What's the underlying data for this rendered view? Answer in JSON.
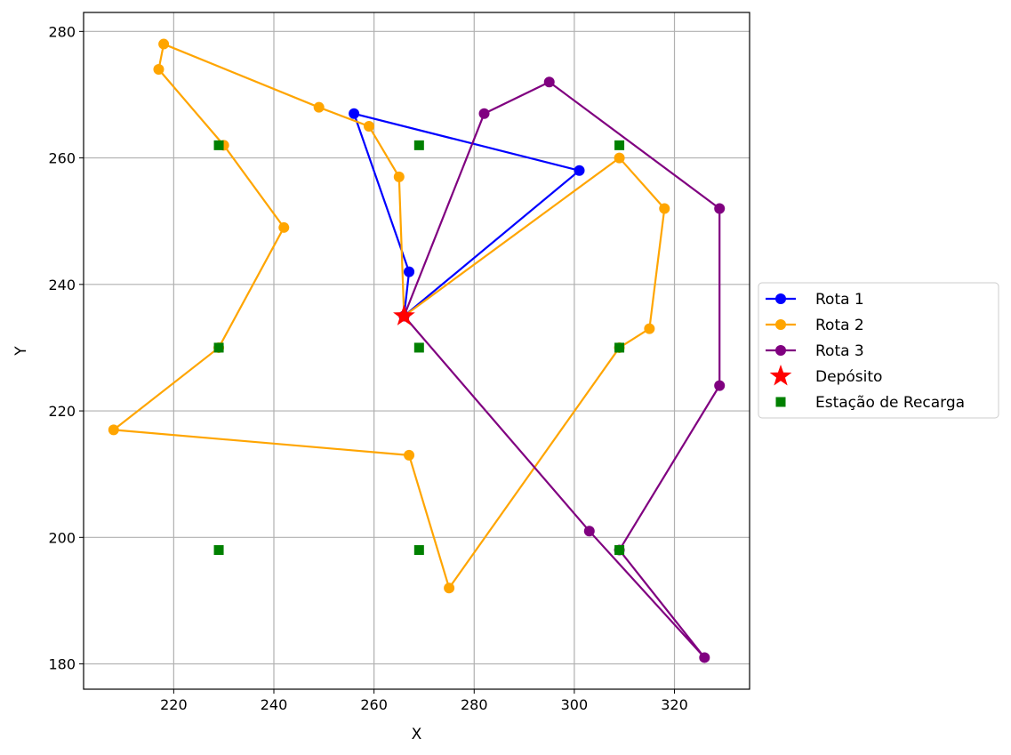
{
  "chart_data": {
    "type": "line",
    "title": "",
    "xlabel": "X",
    "ylabel": "Y",
    "xlim": [
      202,
      335
    ],
    "ylim": [
      176,
      283
    ],
    "xticks": [
      220,
      240,
      260,
      280,
      300,
      320
    ],
    "yticks": [
      180,
      200,
      220,
      240,
      260,
      280
    ],
    "grid": true,
    "legend_position": "center-right, outside plot",
    "depot": {
      "name": "Depósito",
      "x": 266,
      "y": 235,
      "color": "#ff0000",
      "marker": "star"
    },
    "series": [
      {
        "name": "Rota 1",
        "color": "#0000ff",
        "points": [
          [
            266,
            235
          ],
          [
            267,
            242
          ],
          [
            256,
            267
          ],
          [
            301,
            258
          ],
          [
            266,
            235
          ]
        ]
      },
      {
        "name": "Rota 2",
        "color": "#ffa500",
        "points": [
          [
            266,
            235
          ],
          [
            265,
            257
          ],
          [
            259,
            265
          ],
          [
            249,
            268
          ],
          [
            218,
            278
          ],
          [
            217,
            274
          ],
          [
            230,
            262
          ],
          [
            242,
            249
          ],
          [
            229,
            230
          ],
          [
            208,
            217
          ],
          [
            267,
            213
          ],
          [
            275,
            192
          ],
          [
            309,
            230
          ],
          [
            315,
            233
          ],
          [
            318,
            252
          ],
          [
            309,
            260
          ],
          [
            266,
            235
          ]
        ]
      },
      {
        "name": "Rota 3",
        "color": "#800080",
        "points": [
          [
            266,
            235
          ],
          [
            282,
            267
          ],
          [
            295,
            272
          ],
          [
            329,
            252
          ],
          [
            329,
            224
          ],
          [
            309,
            198
          ],
          [
            326,
            181
          ],
          [
            303,
            201
          ],
          [
            266,
            235
          ]
        ]
      }
    ],
    "stations": {
      "name": "Estação de Recarga",
      "color": "#008000",
      "marker": "square",
      "points": [
        [
          229,
          262
        ],
        [
          269,
          262
        ],
        [
          309,
          262
        ],
        [
          229,
          230
        ],
        [
          269,
          230
        ],
        [
          309,
          230
        ],
        [
          229,
          198
        ],
        [
          269,
          198
        ],
        [
          309,
          198
        ]
      ]
    }
  }
}
